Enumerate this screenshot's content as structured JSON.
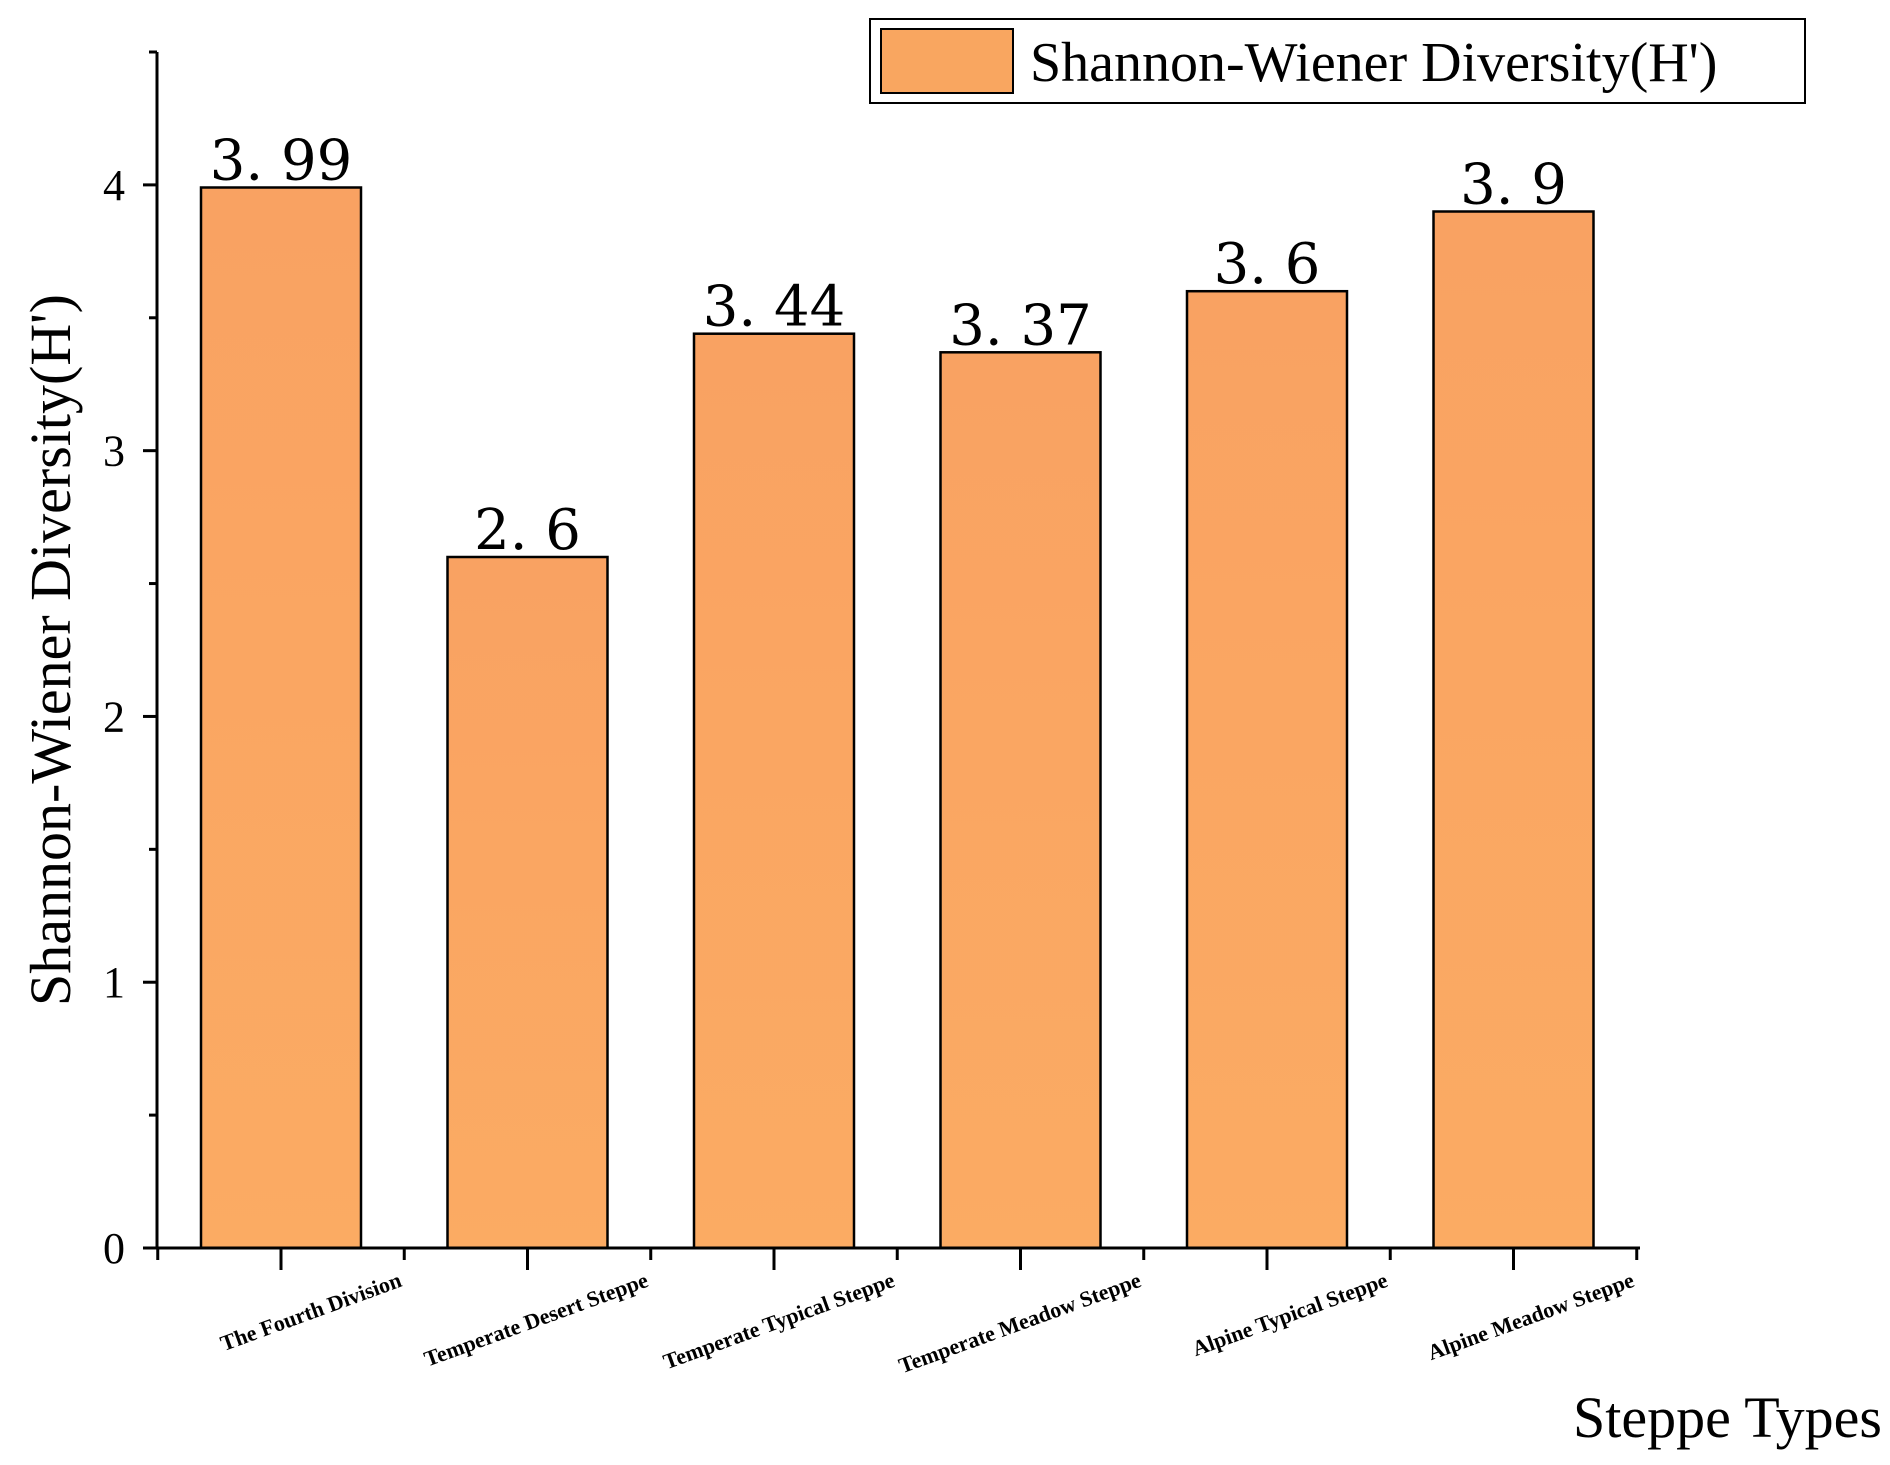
{
  "chart_data": {
    "type": "bar",
    "title": "",
    "xlabel": "Steppe Types",
    "ylabel": "Shannon-Wiener Diversity(H')",
    "ylim": [
      0,
      4.5
    ],
    "yticks": [
      0,
      1,
      2,
      3,
      4
    ],
    "grid": false,
    "legend_position": "top-right",
    "categories": [
      "The Fourth Division",
      "Temperate Desert Steppe",
      "Temperate Typical Steppe",
      "Temperate Meadow Steppe",
      "Alpine Typical Steppe",
      "Alpine Meadow Steppe"
    ],
    "series": [
      {
        "name": "Shannon-Wiener Diversity(H')",
        "color": "#F9A660",
        "values": [
          3.99,
          2.6,
          3.44,
          3.37,
          3.6,
          3.9
        ],
        "labels": [
          "3. 99",
          "2. 6",
          "3. 44",
          "3. 37",
          "3. 6",
          "3. 9"
        ]
      }
    ]
  }
}
